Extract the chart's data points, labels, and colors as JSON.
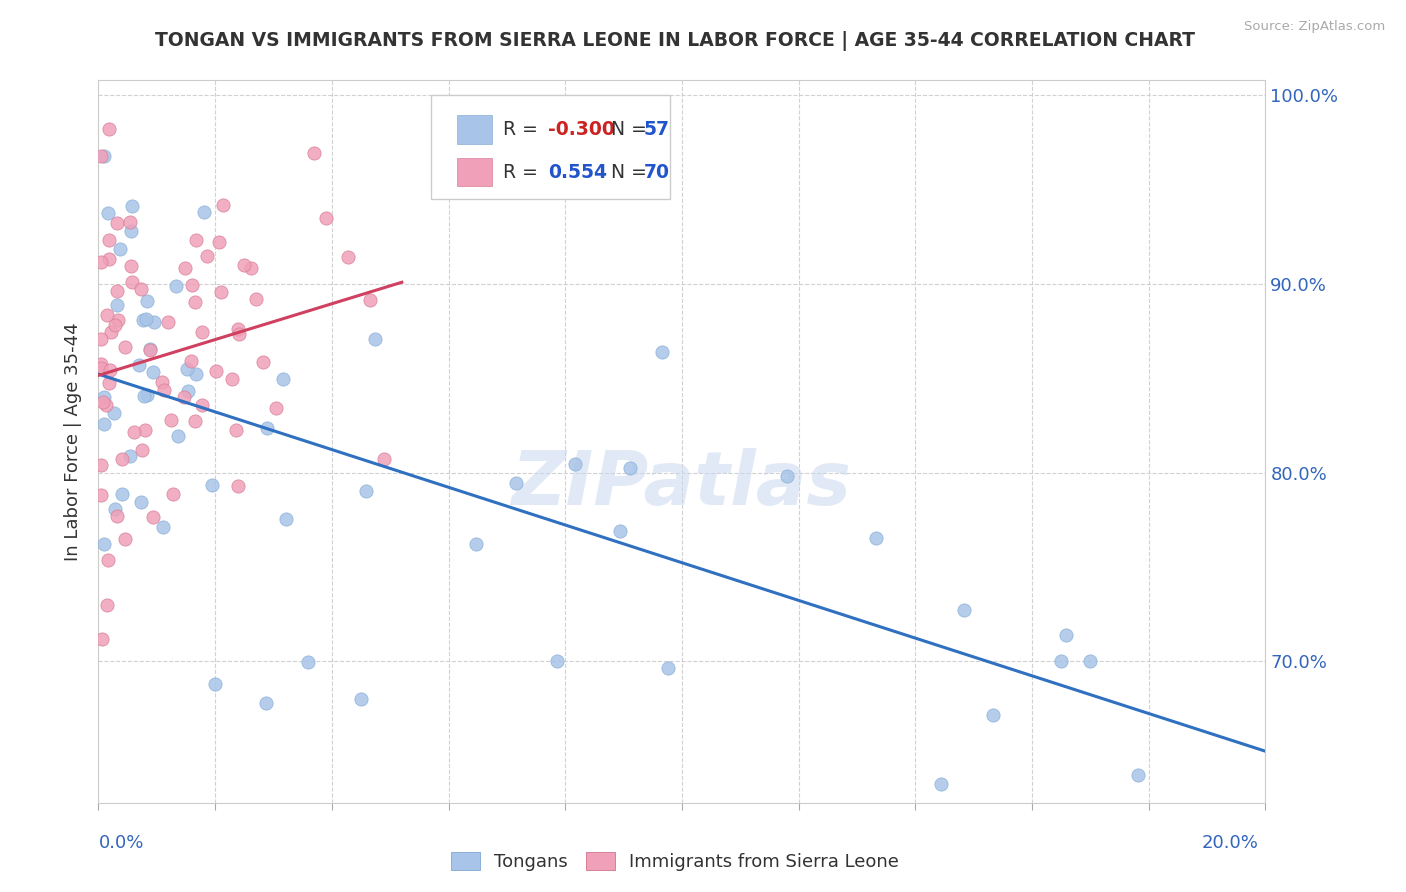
{
  "title": "TONGAN VS IMMIGRANTS FROM SIERRA LEONE IN LABOR FORCE | AGE 35-44 CORRELATION CHART",
  "source": "Source: ZipAtlas.com",
  "ylabel": "In Labor Force | Age 35-44",
  "legend_labels": [
    "Tongans",
    "Immigrants from Sierra Leone"
  ],
  "series1_label": "Tongans",
  "series1_color": "#a8c4e8",
  "series1_edge": "#8ab0d8",
  "series1_R": "-0.300",
  "series1_N": "57",
  "series2_label": "Immigrants from Sierra Leone",
  "series2_color": "#f0a0b8",
  "series2_edge": "#d88098",
  "series2_R": "0.554",
  "series2_N": "70",
  "trend1_color": "#3070c0",
  "trend2_color": "#d04060",
  "watermark": "ZIPatlas",
  "bg": "#ffffff",
  "xmin": 0.0,
  "xmax": 0.2,
  "ymin": 0.625,
  "ymax": 1.008,
  "yticks": [
    0.7,
    0.8,
    0.9,
    1.0
  ],
  "ytick_labels": [
    "70.0%",
    "80.0%",
    "90.0%",
    "100.0%"
  ],
  "R_color": "#cc2222",
  "N_color": "#2255cc",
  "label_color": "#3366bb",
  "title_color": "#333333",
  "source_color": "#aaaaaa"
}
